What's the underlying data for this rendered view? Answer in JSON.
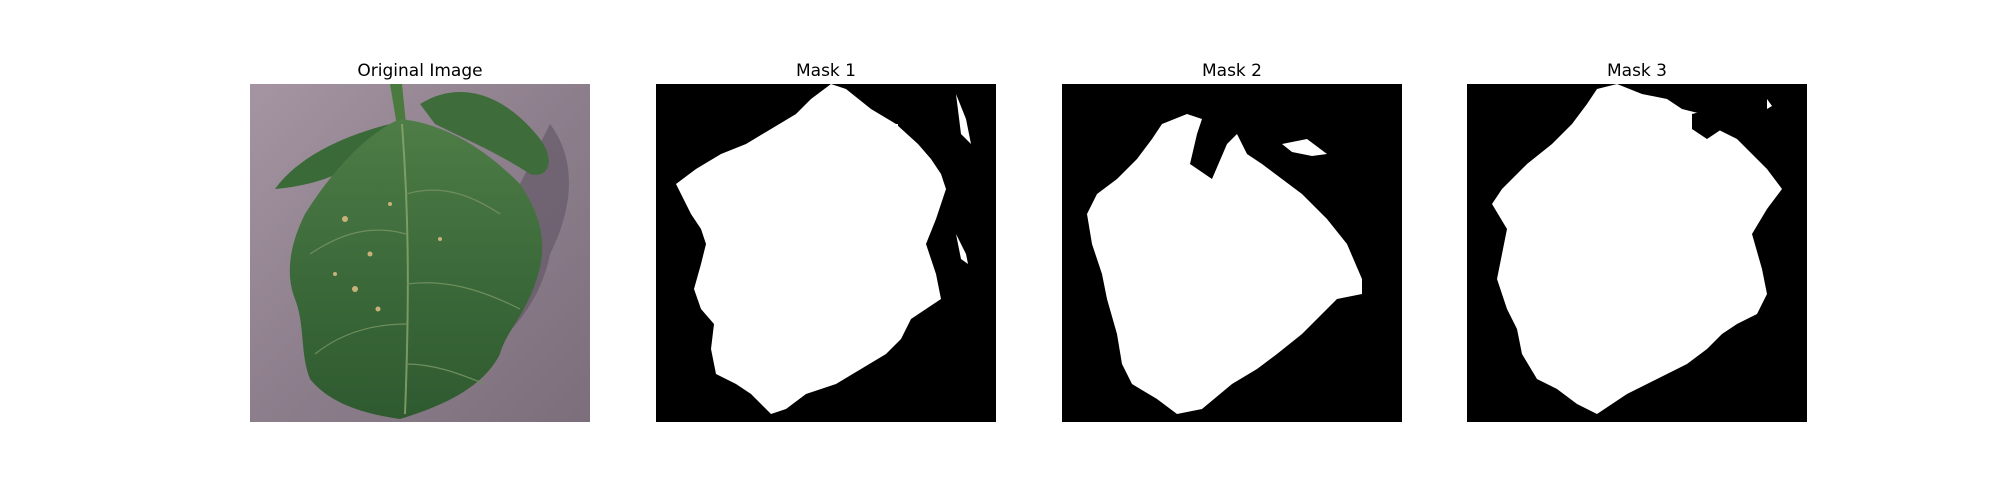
{
  "figure": {
    "panels": [
      {
        "title": "Original Image"
      },
      {
        "title": "Mask 1"
      },
      {
        "title": "Mask 2"
      },
      {
        "title": "Mask 3"
      }
    ]
  },
  "colors": {
    "background": "#ffffff",
    "mask_foreground": "#ffffff",
    "mask_background": "#000000",
    "surface": "#8f8190",
    "leaf": "#3f6a3c"
  }
}
